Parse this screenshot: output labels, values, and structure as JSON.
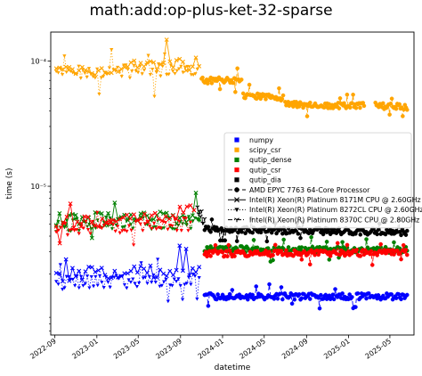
{
  "chart_data": {
    "type": "scatter",
    "title": "math:add:op-plus-ket-32-sparse",
    "xlabel": "datetime",
    "ylabel": "time (s)",
    "yscale": "log",
    "xlim": [
      "2022-08-20",
      "2025-07-10"
    ],
    "ylim": [
      6.5e-07,
      0.00017
    ],
    "x_ticks": [
      "2022-09",
      "2023-01",
      "2023-05",
      "2023-09",
      "2024-01",
      "2024-05",
      "2024-09",
      "2025-01",
      "2025-05"
    ],
    "y_ticks": [
      {
        "value": 1e-05,
        "label": "10⁻⁵"
      },
      {
        "value": 0.0001,
        "label": "10⁻⁴"
      }
    ],
    "legend_position": "center-right",
    "series": [
      {
        "name": "numpy",
        "color": "#0000ff",
        "marker": "square"
      },
      {
        "name": "scipy_csr",
        "color": "#ffa500",
        "marker": "square"
      },
      {
        "name": "qutip_dense",
        "color": "#008000",
        "marker": "square"
      },
      {
        "name": "qutip_csr",
        "color": "#ff0000",
        "marker": "square"
      },
      {
        "name": "qutip_dia",
        "color": "#000000",
        "marker": "square"
      }
    ],
    "cpus": [
      {
        "name": "AMD EPYC 7763 64-Core Processor",
        "marker": "circle",
        "line": "dashed"
      },
      {
        "name": "Intel(R) Xeon(R) Platinum 8171M CPU @ 2.60GHz",
        "marker": "x",
        "line": "solid"
      },
      {
        "name": "Intel(R) Xeon(R) Platinum 8272CL CPU @ 2.60GHz",
        "marker": "triangle-down",
        "line": "dotted"
      },
      {
        "name": "Intel(R) Xeon(R) Platinum 8370C CPU @ 2.80GHz",
        "marker": "tri-down",
        "line": "dashdot"
      }
    ],
    "segments": [
      {
        "series": "scipy_csr",
        "cpu": "Intel(R) Xeon(R) Platinum 8272CL CPU @ 2.60GHz",
        "start": "2022-09-05",
        "end": "2023-10-20",
        "y0": 8e-05,
        "y1": 8.6e-05,
        "n": 70
      },
      {
        "series": "scipy_csr",
        "cpu": "Intel(R) Xeon(R) Platinum 8171M CPU @ 2.60GHz",
        "start": "2022-09-05",
        "end": "2023-10-25",
        "y0": 8.3e-05,
        "y1": 9.5e-05,
        "n": 45
      },
      {
        "series": "scipy_csr",
        "cpu": "AMD EPYC 7763 64-Core Processor",
        "start": "2023-11-01",
        "end": "2024-02-25",
        "y0": 7e-05,
        "y1": 7e-05,
        "n": 40
      },
      {
        "series": "scipy_csr",
        "cpu": "AMD EPYC 7763 64-Core Processor",
        "start": "2024-03-01",
        "end": "2024-06-25",
        "y0": 5.3e-05,
        "y1": 5.1e-05,
        "n": 40
      },
      {
        "series": "scipy_csr",
        "cpu": "AMD EPYC 7763 64-Core Processor",
        "start": "2024-07-01",
        "end": "2025-02-15",
        "y0": 4.5e-05,
        "y1": 4.4e-05,
        "n": 80
      },
      {
        "series": "scipy_csr",
        "cpu": "AMD EPYC 7763 64-Core Processor",
        "start": "2025-03-20",
        "end": "2025-06-20",
        "y0": 4.4e-05,
        "y1": 4.3e-05,
        "n": 30
      },
      {
        "series": "qutip_dense",
        "cpu": "Intel(R) Xeon(R) Platinum 8272CL CPU @ 2.60GHz",
        "start": "2022-09-05",
        "end": "2023-10-25",
        "y0": 4.9e-06,
        "y1": 5.2e-06,
        "n": 70
      },
      {
        "series": "qutip_dense",
        "cpu": "Intel(R) Xeon(R) Platinum 8171M CPU @ 2.60GHz",
        "start": "2022-09-05",
        "end": "2023-10-25",
        "y0": 5.4e-06,
        "y1": 5.6e-06,
        "n": 45
      },
      {
        "series": "qutip_dense",
        "cpu": "AMD EPYC 7763 64-Core Processor",
        "start": "2023-11-10",
        "end": "2025-06-20",
        "y0": 3.15e-06,
        "y1": 3.1e-06,
        "n": 170
      },
      {
        "series": "qutip_csr",
        "cpu": "Intel(R) Xeon(R) Platinum 8272CL CPU @ 2.60GHz",
        "start": "2022-09-05",
        "end": "2023-09-30",
        "y0": 4.6e-06,
        "y1": 5e-06,
        "n": 60
      },
      {
        "series": "qutip_csr",
        "cpu": "Intel(R) Xeon(R) Platinum 8171M CPU @ 2.60GHz",
        "start": "2022-09-05",
        "end": "2023-10-10",
        "y0": 5e-06,
        "y1": 6.3e-06,
        "n": 40
      },
      {
        "series": "qutip_csr",
        "cpu": "AMD EPYC 7763 64-Core Processor",
        "start": "2023-11-10",
        "end": "2025-06-20",
        "y0": 2.9e-06,
        "y1": 2.95e-06,
        "n": 170
      },
      {
        "series": "qutip_dia",
        "cpu": "AMD EPYC 7763 64-Core Processor",
        "start": "2023-11-10",
        "end": "2025-06-20",
        "y0": 4.5e-06,
        "y1": 4.3e-06,
        "n": 170
      },
      {
        "series": "qutip_dia",
        "cpu": "Intel(R) Xeon(R) Platinum 8370C CPU @ 2.80GHz",
        "start": "2023-10-20",
        "end": "2023-11-10",
        "y0": 6.8e-06,
        "y1": 5e-06,
        "n": 8
      },
      {
        "series": "numpy",
        "cpu": "Intel(R) Xeon(R) Platinum 8272CL CPU @ 2.60GHz",
        "start": "2022-09-05",
        "end": "2023-10-25",
        "y0": 1.7e-06,
        "y1": 1.8e-06,
        "n": 70
      },
      {
        "series": "numpy",
        "cpu": "Intel(R) Xeon(R) Platinum 8171M CPU @ 2.60GHz",
        "start": "2022-09-05",
        "end": "2023-10-25",
        "y0": 1.95e-06,
        "y1": 2.2e-06,
        "n": 45
      },
      {
        "series": "numpy",
        "cpu": "AMD EPYC 7763 64-Core Processor",
        "start": "2023-11-10",
        "end": "2025-06-20",
        "y0": 1.32e-06,
        "y1": 1.32e-06,
        "n": 170
      }
    ]
  }
}
